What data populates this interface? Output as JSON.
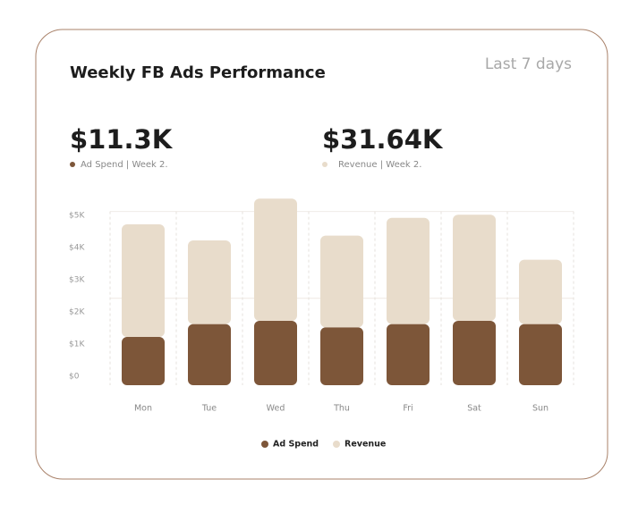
{
  "header": {
    "title": "Weekly FB Ads Performance",
    "period": "Last 7 days"
  },
  "kpis": [
    {
      "value": "$11.3K",
      "label": "Ad Spend | Week 2.",
      "color": "#7d5639"
    },
    {
      "value": "$31.64K",
      "label": "Revenue | Week 2.",
      "color": "#e8dccb"
    }
  ],
  "chart_data": {
    "type": "stacked_bar",
    "categories": [
      "Mon",
      "Tue",
      "Wed",
      "Thu",
      "Fri",
      "Sat",
      "Sun"
    ],
    "series": [
      {
        "name": "Ad Spend",
        "color": "#7d5639",
        "values": [
          1500,
          1900,
          2000,
          1800,
          1900,
          2000,
          1900
        ]
      },
      {
        "name": "Revenue",
        "color": "#e8dccb",
        "values": [
          3500,
          2600,
          3800,
          2850,
          3300,
          3300,
          2000
        ]
      }
    ],
    "ylim": [
      0,
      5400
    ],
    "yticks": [
      {
        "value": 0,
        "label": "$0"
      },
      {
        "value": 1000,
        "label": "$1K"
      },
      {
        "value": 2000,
        "label": "$2K"
      },
      {
        "value": 3000,
        "label": "$3K"
      },
      {
        "value": 4000,
        "label": "$4K"
      },
      {
        "value": 5000,
        "label": "$5K"
      }
    ]
  }
}
